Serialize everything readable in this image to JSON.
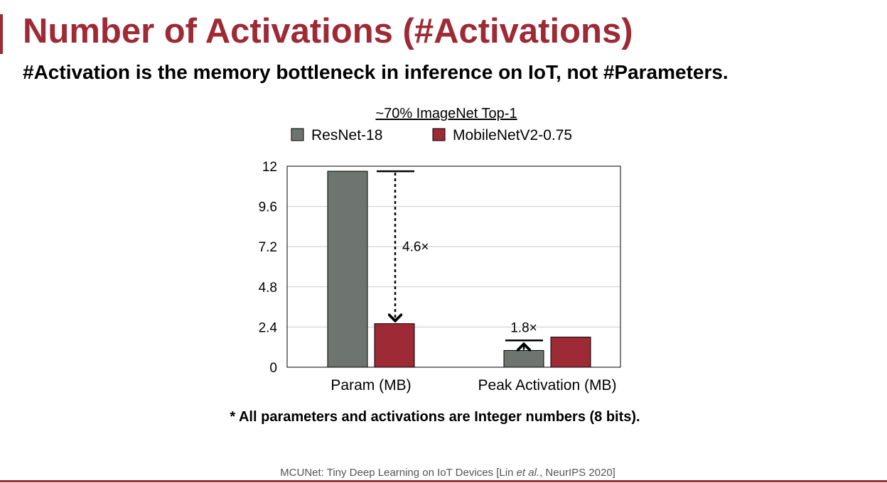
{
  "slide": {
    "title": "Number of Activations (#Activations)",
    "subtitle": "#Activation is the memory bottleneck in inference on IoT, not #Parameters.",
    "footnote": "* All parameters and activations are Integer numbers (8 bits).",
    "citation": {
      "before": "MCUNet: Tiny Deep Learning on IoT Devices [Lin ",
      "italic": "et al.",
      "after": ", NeurIPS 2020]"
    },
    "accent_color": "#9e2a35"
  },
  "chart_data": {
    "type": "bar",
    "title": "~70% ImageNet Top-1",
    "categories": [
      "Param (MB)",
      "Peak Activation (MB)"
    ],
    "series": [
      {
        "name": "ResNet-18",
        "color": "#6e7570",
        "values": [
          11.7,
          1.0
        ]
      },
      {
        "name": "MobileNetV2-0.75",
        "color": "#9e2a35",
        "values": [
          2.6,
          1.8
        ]
      }
    ],
    "ylim": [
      0,
      12
    ],
    "yticks": [
      "0",
      "2.4",
      "4.8",
      "7.2",
      "9.6",
      "12"
    ],
    "grid": true,
    "legend": "top",
    "annotations": [
      {
        "category": "Param (MB)",
        "label": "4.6×",
        "from": 11.7,
        "to": 2.6,
        "style": "dashed-arrow-down"
      },
      {
        "category": "Peak Activation (MB)",
        "label": "1.8×",
        "from": 1.0,
        "to": 1.6,
        "style": "arrow-up"
      }
    ]
  }
}
